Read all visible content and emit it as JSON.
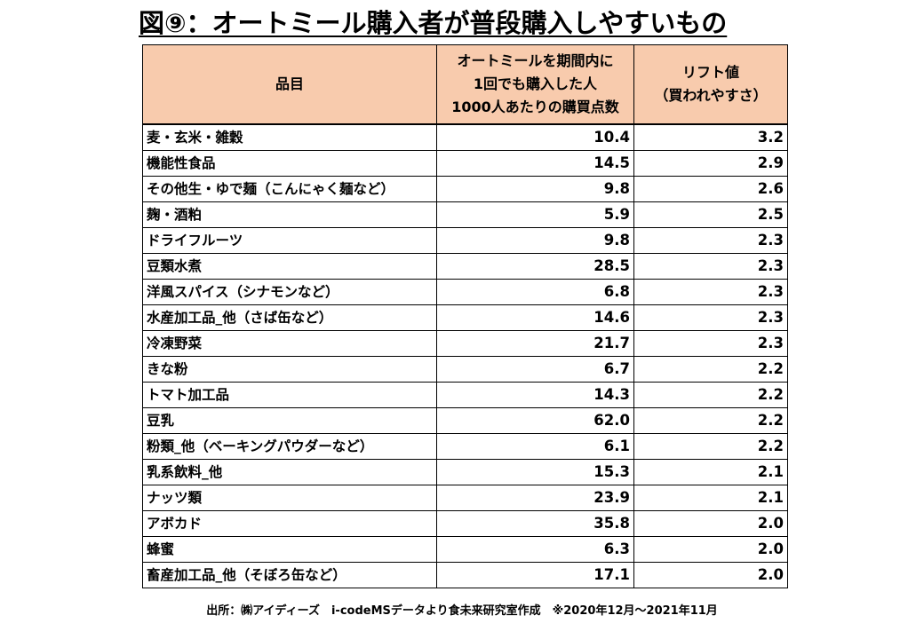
{
  "title": "図⑨：オートミール購入者が普段購入しやすいもの",
  "headers": {
    "item": "品目",
    "points_line1": "オートミールを期間内に",
    "points_line2": "1回でも購入した人",
    "points_line3": "1000人あたりの購買点数",
    "lift_line1": "リフト値",
    "lift_line2": "（買われやすさ）"
  },
  "chart_data": {
    "type": "table",
    "title": "図⑨：オートミール購入者が普段購入しやすいもの",
    "columns": [
      "品目",
      "オートミールを期間内に1回でも購入した人1000人あたりの購買点数",
      "リフト値（買われやすさ）"
    ],
    "rows": [
      {
        "item": "麦・玄米・雑穀",
        "points": "10.4",
        "lift": "3.2"
      },
      {
        "item": "機能性食品",
        "points": "14.5",
        "lift": "2.9"
      },
      {
        "item": "その他生・ゆで麺（こんにゃく麺など）",
        "points": "9.8",
        "lift": "2.6"
      },
      {
        "item": "麹・酒粕",
        "points": "5.9",
        "lift": "2.5"
      },
      {
        "item": "ドライフルーツ",
        "points": "9.8",
        "lift": "2.3"
      },
      {
        "item": "豆類水煮",
        "points": "28.5",
        "lift": "2.3"
      },
      {
        "item": "洋風スパイス（シナモンなど）",
        "points": "6.8",
        "lift": "2.3"
      },
      {
        "item": "水産加工品_他（さば缶など）",
        "points": "14.6",
        "lift": "2.3"
      },
      {
        "item": "冷凍野菜",
        "points": "21.7",
        "lift": "2.3"
      },
      {
        "item": "きな粉",
        "points": "6.7",
        "lift": "2.2"
      },
      {
        "item": "トマト加工品",
        "points": "14.3",
        "lift": "2.2"
      },
      {
        "item": "豆乳",
        "points": "62.0",
        "lift": "2.2"
      },
      {
        "item": "粉類_他（ベーキングパウダーなど）",
        "points": "6.1",
        "lift": "2.2"
      },
      {
        "item": "乳系飲料_他",
        "points": "15.3",
        "lift": "2.1"
      },
      {
        "item": "ナッツ類",
        "points": "23.9",
        "lift": "2.1"
      },
      {
        "item": "アボカド",
        "points": "35.8",
        "lift": "2.0"
      },
      {
        "item": "蜂蜜",
        "points": "6.3",
        "lift": "2.0"
      },
      {
        "item": "畜産加工品_他（そぼろ缶など）",
        "points": "17.1",
        "lift": "2.0"
      }
    ]
  },
  "source": "出所：㈱アイディーズ　i-codeMSデータより食未来研究室作成　※2020年12月～2021年11月",
  "colors": {
    "header_bg": "#f8cbad",
    "border": "#000000"
  }
}
